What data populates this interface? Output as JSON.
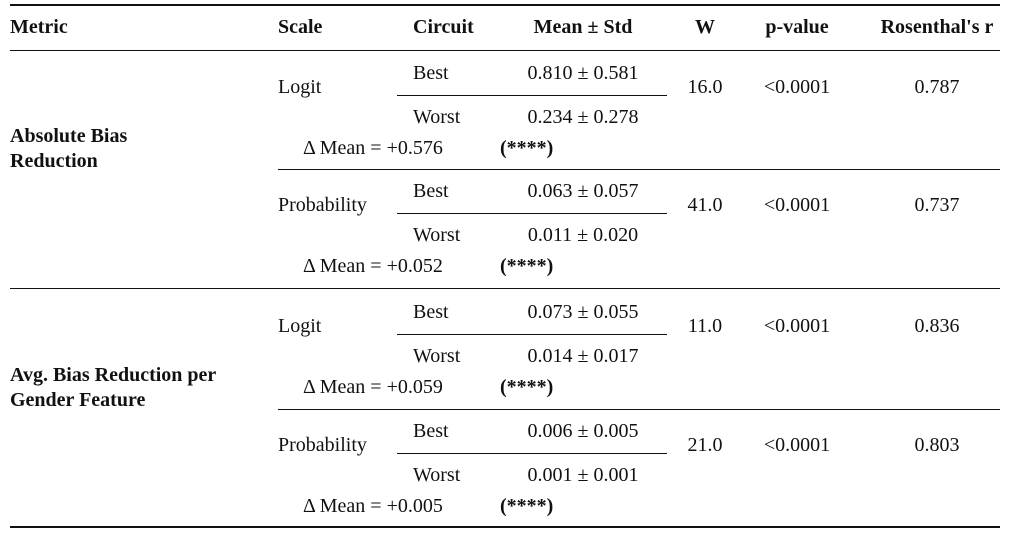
{
  "table": {
    "columns": [
      "Metric",
      "Scale",
      "Circuit",
      "Mean ± Std",
      "W",
      "p-value",
      "Rosenthal's r"
    ],
    "groups": [
      {
        "metric": [
          "Absolute Bias",
          "Reduction"
        ],
        "scales": [
          {
            "scale": "Logit",
            "best": [
              "Best",
              "0.810 ± 0.581"
            ],
            "worst": [
              "Worst",
              "0.234 ± 0.278"
            ],
            "delta": "Δ Mean = +0.576",
            "significance": "(****)",
            "W": "16.0",
            "p": "<0.0001",
            "r": "0.787"
          },
          {
            "scale": "Probability",
            "best": [
              "Best",
              "0.063 ± 0.057"
            ],
            "worst": [
              "Worst",
              "0.011 ± 0.020"
            ],
            "delta": "Δ Mean = +0.052",
            "significance": "(****)",
            "W": "41.0",
            "p": "<0.0001",
            "r": "0.737"
          }
        ]
      },
      {
        "metric": [
          "Avg. Bias Reduction per",
          "Gender Feature"
        ],
        "scales": [
          {
            "scale": "Logit",
            "best": [
              "Best",
              "0.073 ± 0.055"
            ],
            "worst": [
              "Worst",
              "0.014 ± 0.017"
            ],
            "delta": "Δ Mean = +0.059",
            "significance": "(****)",
            "W": "11.0",
            "p": "<0.0001",
            "r": "0.836"
          },
          {
            "scale": "Probability",
            "best": [
              "Best",
              "0.006 ± 0.005"
            ],
            "worst": [
              "Worst",
              "0.001 ± 0.001"
            ],
            "delta": "Δ Mean = +0.005",
            "significance": "(****)",
            "W": "21.0",
            "p": "<0.0001",
            "r": "0.803"
          }
        ]
      }
    ]
  }
}
